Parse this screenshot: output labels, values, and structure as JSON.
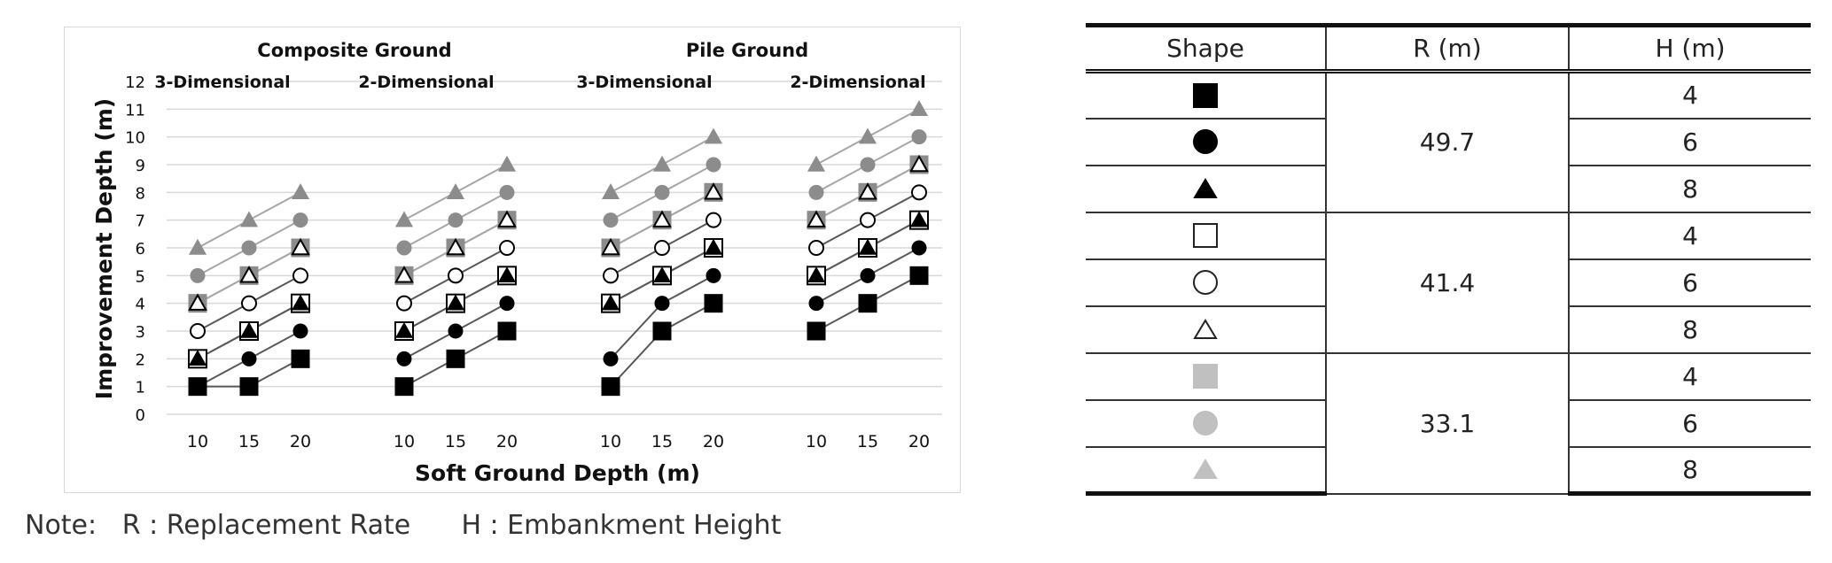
{
  "chart_data": {
    "type": "line",
    "xlabel": "Soft Ground Depth (m)",
    "ylabel": "Improvement Depth (m)",
    "ylim": [
      0,
      12
    ],
    "yticks": [
      "0",
      "1",
      "2",
      "3",
      "4",
      "5",
      "6",
      "7",
      "8",
      "9",
      "10",
      "11",
      "12"
    ],
    "x": [
      "10",
      "15",
      "20"
    ],
    "grid": true,
    "groups": [
      {
        "title": "Composite Ground",
        "panels": [
          {
            "label": "3-Dimensional",
            "series": [
              {
                "shape": "filled-square",
                "values": [
                  1,
                  1,
                  2
                ]
              },
              {
                "shape": "filled-circle",
                "values": [
                  1,
                  2,
                  3
                ]
              },
              {
                "shape": "filled-triangle",
                "values": [
                  2,
                  3,
                  4
                ]
              },
              {
                "shape": "open-square",
                "values": [
                  2,
                  3,
                  4
                ]
              },
              {
                "shape": "open-circle",
                "values": [
                  3,
                  4,
                  5
                ]
              },
              {
                "shape": "open-triangle",
                "values": [
                  4,
                  5,
                  6
                ]
              },
              {
                "shape": "gray-square",
                "values": [
                  4,
                  5,
                  6
                ]
              },
              {
                "shape": "gray-circle",
                "values": [
                  5,
                  6,
                  7
                ]
              },
              {
                "shape": "gray-triangle",
                "values": [
                  6,
                  7,
                  8
                ]
              }
            ]
          },
          {
            "label": "2-Dimensional",
            "series": [
              {
                "shape": "filled-square",
                "values": [
                  1,
                  2,
                  3
                ]
              },
              {
                "shape": "filled-circle",
                "values": [
                  2,
                  3,
                  4
                ]
              },
              {
                "shape": "filled-triangle",
                "values": [
                  3,
                  4,
                  5
                ]
              },
              {
                "shape": "open-square",
                "values": [
                  3,
                  4,
                  5
                ]
              },
              {
                "shape": "open-circle",
                "values": [
                  4,
                  5,
                  6
                ]
              },
              {
                "shape": "open-triangle",
                "values": [
                  5,
                  6,
                  7
                ]
              },
              {
                "shape": "gray-square",
                "values": [
                  5,
                  6,
                  7
                ]
              },
              {
                "shape": "gray-circle",
                "values": [
                  6,
                  7,
                  8
                ]
              },
              {
                "shape": "gray-triangle",
                "values": [
                  7,
                  8,
                  9
                ]
              }
            ]
          }
        ]
      },
      {
        "title": "Pile Ground",
        "panels": [
          {
            "label": "3-Dimensional",
            "series": [
              {
                "shape": "filled-square",
                "values": [
                  1,
                  3,
                  4
                ]
              },
              {
                "shape": "filled-circle",
                "values": [
                  2,
                  4,
                  5
                ]
              },
              {
                "shape": "filled-triangle",
                "values": [
                  4,
                  5,
                  6
                ]
              },
              {
                "shape": "open-square",
                "values": [
                  4,
                  5,
                  6
                ]
              },
              {
                "shape": "open-circle",
                "values": [
                  5,
                  6,
                  7
                ]
              },
              {
                "shape": "open-triangle",
                "values": [
                  6,
                  7,
                  8
                ]
              },
              {
                "shape": "gray-square",
                "values": [
                  6,
                  7,
                  8
                ]
              },
              {
                "shape": "gray-circle",
                "values": [
                  7,
                  8,
                  9
                ]
              },
              {
                "shape": "gray-triangle",
                "values": [
                  8,
                  9,
                  10
                ]
              }
            ]
          },
          {
            "label": "2-Dimensional",
            "series": [
              {
                "shape": "filled-square",
                "values": [
                  3,
                  4,
                  5
                ]
              },
              {
                "shape": "filled-circle",
                "values": [
                  4,
                  5,
                  6
                ]
              },
              {
                "shape": "filled-triangle",
                "values": [
                  5,
                  6,
                  7
                ]
              },
              {
                "shape": "open-square",
                "values": [
                  5,
                  6,
                  7
                ]
              },
              {
                "shape": "open-circle",
                "values": [
                  6,
                  7,
                  8
                ]
              },
              {
                "shape": "open-triangle",
                "values": [
                  7,
                  8,
                  9
                ]
              },
              {
                "shape": "gray-square",
                "values": [
                  7,
                  8,
                  9
                ]
              },
              {
                "shape": "gray-circle",
                "values": [
                  8,
                  9,
                  10
                ]
              },
              {
                "shape": "gray-triangle",
                "values": [
                  9,
                  10,
                  11
                ]
              }
            ]
          }
        ]
      }
    ]
  },
  "legend_table": {
    "headers": [
      "Shape",
      "R (m)",
      "H (m)"
    ],
    "groups": [
      {
        "r": "49.7",
        "rows": [
          {
            "shape": "filled-square",
            "h": "4"
          },
          {
            "shape": "filled-circle",
            "h": "6"
          },
          {
            "shape": "filled-triangle",
            "h": "8"
          }
        ]
      },
      {
        "r": "41.4",
        "rows": [
          {
            "shape": "open-square",
            "h": "4"
          },
          {
            "shape": "open-circle",
            "h": "6"
          },
          {
            "shape": "open-triangle",
            "h": "8"
          }
        ]
      },
      {
        "r": "33.1",
        "rows": [
          {
            "shape": "gray-square",
            "h": "4"
          },
          {
            "shape": "gray-circle",
            "h": "6"
          },
          {
            "shape": "gray-triangle",
            "h": "8"
          }
        ]
      }
    ]
  },
  "note": {
    "prefix": "Note:",
    "r_text": "R : Replacement Rate",
    "h_text": "H : Embankment Height"
  },
  "colors": {
    "black": "#000000",
    "gray_marker": "#8c8c8c",
    "light_marker": "#c0c0c0",
    "grid": "#d9d9d9",
    "line_dark": "#595959",
    "line_light": "#a6a6a6"
  }
}
